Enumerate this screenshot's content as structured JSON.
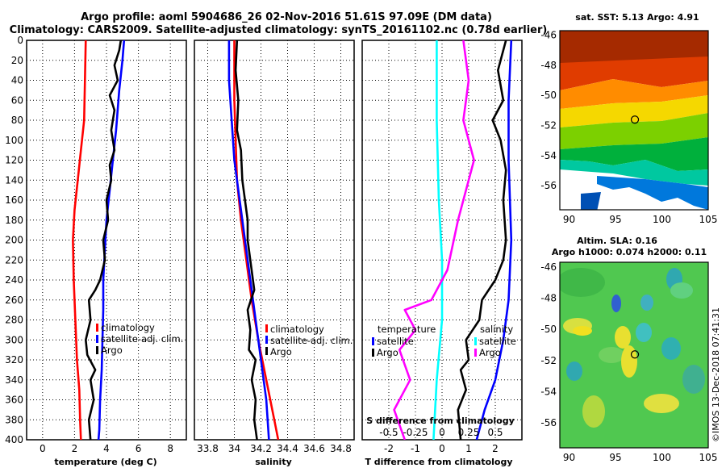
{
  "header": {
    "title_line1": "Argo profile: aoml 5904686_26 02-Nov-2016 51.61S 97.09E (DM data)",
    "title_line2": "Climatology: CARS2009. Satellite-adjusted climatology: synTS_20161102.nc (0.78d earlier)"
  },
  "colors": {
    "climatology": "#ff0000",
    "satellite": "#0000ff",
    "argo": "#000000",
    "salinity_diff": "#ff00ff",
    "salinity_satellite": "#00ffff"
  },
  "chart_data": [
    {
      "type": "line",
      "id": "temperature",
      "xlabel": "temperature (deg C)",
      "ylabel": "",
      "xlim": [
        -1,
        9
      ],
      "ylim": [
        400,
        0
      ],
      "xticks": [
        0,
        2,
        4,
        6,
        8
      ],
      "xtick_labels": [
        "0",
        "2",
        "4",
        "6",
        "8"
      ],
      "yticks": [
        0,
        20,
        40,
        60,
        80,
        100,
        120,
        140,
        160,
        180,
        200,
        220,
        240,
        260,
        280,
        300,
        320,
        340,
        360,
        380,
        400
      ],
      "ytick_labels": [
        "0",
        "20",
        "40",
        "60",
        "80",
        "100",
        "120",
        "140",
        "160",
        "180",
        "200",
        "220",
        "240",
        "260",
        "280",
        "300",
        "320",
        "340",
        "360",
        "380",
        "400"
      ],
      "legend": [
        "climatology",
        "satellite-adj. clim.",
        "Argo"
      ],
      "series": [
        {
          "name": "climatology",
          "color": "#ff0000",
          "points": [
            [
              2.7,
              0
            ],
            [
              2.65,
              40
            ],
            [
              2.6,
              80
            ],
            [
              2.4,
              110
            ],
            [
              2.2,
              140
            ],
            [
              2.0,
              170
            ],
            [
              1.9,
              200
            ],
            [
              1.95,
              240
            ],
            [
              2.05,
              280
            ],
            [
              2.15,
              320
            ],
            [
              2.3,
              350
            ],
            [
              2.35,
              380
            ],
            [
              2.4,
              400
            ]
          ]
        },
        {
          "name": "satellite-adj. clim.",
          "color": "#0000ff",
          "points": [
            [
              5.1,
              0
            ],
            [
              5.0,
              20
            ],
            [
              4.8,
              50
            ],
            [
              4.6,
              90
            ],
            [
              4.4,
              120
            ],
            [
              4.2,
              150
            ],
            [
              4.0,
              180
            ],
            [
              3.9,
              210
            ],
            [
              3.8,
              240
            ],
            [
              3.8,
              270
            ],
            [
              3.75,
              300
            ],
            [
              3.7,
              330
            ],
            [
              3.6,
              360
            ],
            [
              3.55,
              390
            ],
            [
              3.5,
              400
            ]
          ]
        },
        {
          "name": "Argo",
          "color": "#000000",
          "points": [
            [
              4.9,
              0
            ],
            [
              4.8,
              10
            ],
            [
              4.5,
              25
            ],
            [
              4.7,
              40
            ],
            [
              4.2,
              55
            ],
            [
              4.5,
              70
            ],
            [
              4.3,
              90
            ],
            [
              4.5,
              110
            ],
            [
              4.2,
              125
            ],
            [
              4.3,
              140
            ],
            [
              4.0,
              160
            ],
            [
              4.1,
              180
            ],
            [
              3.8,
              200
            ],
            [
              3.9,
              220
            ],
            [
              3.6,
              240
            ],
            [
              3.3,
              250
            ],
            [
              2.9,
              260
            ],
            [
              3.0,
              280
            ],
            [
              2.7,
              300
            ],
            [
              2.8,
              315
            ],
            [
              3.3,
              330
            ],
            [
              3.0,
              340
            ],
            [
              3.2,
              360
            ],
            [
              2.9,
              380
            ],
            [
              3.0,
              400
            ]
          ]
        }
      ]
    },
    {
      "type": "line",
      "id": "salinity",
      "xlabel": "salinity",
      "xlim": [
        33.7,
        34.9
      ],
      "ylim": [
        400,
        0
      ],
      "xticks": [
        33.8,
        34,
        34.2,
        34.4,
        34.6,
        34.8
      ],
      "xtick_labels": [
        "33.8",
        "34",
        "34.2",
        "34.4",
        "34.6",
        "34.8"
      ],
      "legend": [
        "climatology",
        "satellite-adj. clim.",
        "Argo"
      ],
      "series": [
        {
          "name": "climatology",
          "color": "#ff0000",
          "points": [
            [
              34.0,
              0
            ],
            [
              34.0,
              60
            ],
            [
              34.01,
              100
            ],
            [
              34.02,
              140
            ],
            [
              34.05,
              180
            ],
            [
              34.09,
              220
            ],
            [
              34.13,
              260
            ],
            [
              34.18,
              300
            ],
            [
              34.24,
              340
            ],
            [
              34.3,
              380
            ],
            [
              34.33,
              400
            ]
          ]
        },
        {
          "name": "satellite-adj. clim.",
          "color": "#0000ff",
          "points": [
            [
              33.96,
              0
            ],
            [
              33.96,
              40
            ],
            [
              33.98,
              80
            ],
            [
              34.0,
              120
            ],
            [
              34.04,
              160
            ],
            [
              34.08,
              200
            ],
            [
              34.12,
              240
            ],
            [
              34.16,
              280
            ],
            [
              34.2,
              320
            ],
            [
              34.24,
              360
            ],
            [
              34.26,
              400
            ]
          ]
        },
        {
          "name": "Argo",
          "color": "#000000",
          "points": [
            [
              34.02,
              0
            ],
            [
              34.01,
              30
            ],
            [
              34.03,
              60
            ],
            [
              34.02,
              90
            ],
            [
              34.05,
              110
            ],
            [
              34.06,
              140
            ],
            [
              34.08,
              160
            ],
            [
              34.1,
              180
            ],
            [
              34.1,
              200
            ],
            [
              34.12,
              220
            ],
            [
              34.15,
              250
            ],
            [
              34.1,
              270
            ],
            [
              34.12,
              290
            ],
            [
              34.11,
              310
            ],
            [
              34.16,
              320
            ],
            [
              34.13,
              340
            ],
            [
              34.16,
              360
            ],
            [
              34.15,
              380
            ],
            [
              34.17,
              400
            ]
          ]
        }
      ]
    },
    {
      "type": "line",
      "id": "difference",
      "xlabel": "T difference from climatology",
      "xlabel2": "S difference from climatology",
      "xlim": [
        -3,
        3
      ],
      "ylim": [
        400,
        0
      ],
      "xticks": [
        -2,
        -1,
        0,
        1,
        2
      ],
      "xtick_labels": [
        "-2",
        "-1",
        "0",
        "1",
        "2"
      ],
      "xticks2": [
        -0.5,
        -0.25,
        0,
        0.25,
        0.5
      ],
      "xtick2_labels": [
        "-0.5",
        "-0.25",
        "0",
        "0.25",
        "0.5"
      ],
      "legend_temperature_title": "temperature",
      "legend_salinity_title": "salinity",
      "legend_temperature": [
        "satellite",
        "Argo"
      ],
      "legend_salinity": [
        "satellite",
        "Argo"
      ],
      "series": [
        {
          "name": "T satellite",
          "color": "#0000ff",
          "points": [
            [
              2.6,
              0
            ],
            [
              2.5,
              60
            ],
            [
              2.5,
              120
            ],
            [
              2.6,
              200
            ],
            [
              2.5,
              260
            ],
            [
              2.3,
              300
            ],
            [
              2.0,
              340
            ],
            [
              1.6,
              370
            ],
            [
              1.3,
              400
            ]
          ]
        },
        {
          "name": "T Argo",
          "color": "#000000",
          "points": [
            [
              2.4,
              0
            ],
            [
              2.1,
              30
            ],
            [
              2.3,
              60
            ],
            [
              1.9,
              80
            ],
            [
              2.2,
              100
            ],
            [
              2.4,
              130
            ],
            [
              2.3,
              160
            ],
            [
              2.4,
              200
            ],
            [
              2.3,
              220
            ],
            [
              2.0,
              240
            ],
            [
              1.5,
              260
            ],
            [
              1.4,
              280
            ],
            [
              0.9,
              300
            ],
            [
              1.0,
              320
            ],
            [
              0.7,
              330
            ],
            [
              0.9,
              350
            ],
            [
              0.6,
              370
            ],
            [
              0.7,
              400
            ]
          ]
        },
        {
          "name": "S satellite",
          "color": "#00ffff",
          "points": [
            [
              -0.05,
              0
            ],
            [
              -0.05,
              80
            ],
            [
              -0.03,
              160
            ],
            [
              0.0,
              220
            ],
            [
              0.0,
              280
            ],
            [
              -0.05,
              340
            ],
            [
              -0.08,
              400
            ]
          ]
        },
        {
          "name": "S Argo",
          "color": "#ff00ff",
          "points": [
            [
              0.2,
              0
            ],
            [
              0.25,
              40
            ],
            [
              0.2,
              80
            ],
            [
              0.3,
              120
            ],
            [
              0.15,
              180
            ],
            [
              0.05,
              230
            ],
            [
              -0.1,
              260
            ],
            [
              -0.35,
              270
            ],
            [
              -0.25,
              290
            ],
            [
              -0.4,
              310
            ],
            [
              -0.3,
              340
            ],
            [
              -0.45,
              370
            ],
            [
              -0.35,
              400
            ]
          ]
        }
      ]
    }
  ],
  "map_sst": {
    "title": "sat. SST: 5.13 Argo: 4.91",
    "xticks": [
      90,
      95,
      100,
      105
    ],
    "xtick_labels": [
      "90",
      "95",
      "100",
      "105"
    ],
    "yticks": [
      -46,
      -48,
      -50,
      -52,
      -54,
      -56
    ],
    "ytick_labels": [
      "-46",
      "-48",
      "-50",
      "-52",
      "-54",
      "-56"
    ],
    "xlim": [
      89,
      105
    ],
    "ylim": [
      -57.6,
      -45.7
    ],
    "profile_location": [
      97.09,
      -51.61
    ]
  },
  "map_sla": {
    "title1": "Altim. SLA: 0.16",
    "title2": "Argo h1000: 0.074 h2000: 0.11",
    "xticks": [
      90,
      95,
      100,
      105
    ],
    "xtick_labels": [
      "90",
      "95",
      "100",
      "105"
    ],
    "yticks": [
      -46,
      -48,
      -50,
      -52,
      -54,
      -56
    ],
    "ytick_labels": [
      "-46",
      "-48",
      "-50",
      "-52",
      "-54",
      "-56"
    ],
    "xlim": [
      89,
      105
    ],
    "ylim": [
      -57.6,
      -45.7
    ],
    "profile_location": [
      97.09,
      -51.61
    ]
  },
  "credit": "©IMOS 13-Dec-2018 07:41:31"
}
